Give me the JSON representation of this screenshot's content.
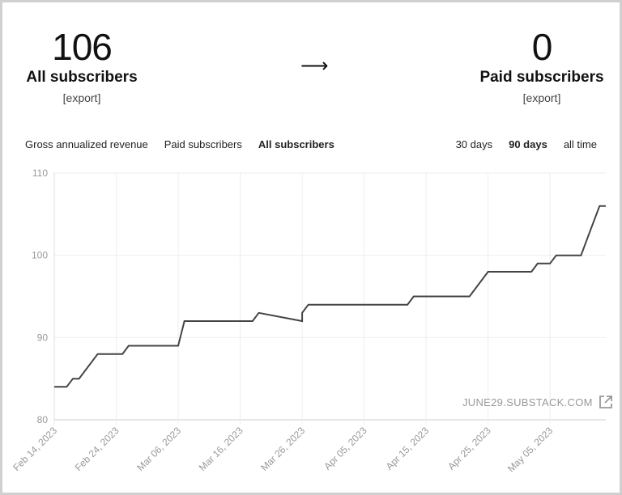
{
  "stats": {
    "all": {
      "value": "106",
      "label": "All subscribers",
      "export": "[export]"
    },
    "paid": {
      "value": "0",
      "label": "Paid subscribers",
      "export": "[export]"
    },
    "arrow": "⟶"
  },
  "metric_tabs": [
    {
      "label": "Gross annualized revenue",
      "active": false
    },
    {
      "label": "Paid subscribers",
      "active": false
    },
    {
      "label": "All subscribers",
      "active": true
    }
  ],
  "range_tabs": [
    {
      "label": "30 days",
      "active": false
    },
    {
      "label": "90 days",
      "active": true
    },
    {
      "label": "all time",
      "active": false
    }
  ],
  "watermark": {
    "text": "JUNE29.SUBSTACK.COM",
    "icon": "external-link-icon"
  },
  "chart_data": {
    "type": "line",
    "ylim": [
      80,
      110
    ],
    "yticks": [
      80,
      90,
      100,
      110
    ],
    "xlim": [
      "2023-02-14",
      "2023-05-14"
    ],
    "xticks": [
      {
        "date": "2023-02-14",
        "label": "Feb 14, 2023"
      },
      {
        "date": "2023-02-24",
        "label": "Feb 24, 2023"
      },
      {
        "date": "2023-03-06",
        "label": "Mar 06, 2023"
      },
      {
        "date": "2023-03-16",
        "label": "Mar 16, 2023"
      },
      {
        "date": "2023-03-26",
        "label": "Mar 26, 2023"
      },
      {
        "date": "2023-04-05",
        "label": "Apr 05, 2023"
      },
      {
        "date": "2023-04-15",
        "label": "Apr 15, 2023"
      },
      {
        "date": "2023-04-25",
        "label": "Apr 25, 2023"
      },
      {
        "date": "2023-05-05",
        "label": "May 05, 2023"
      }
    ],
    "grid": true,
    "line_color": "#444444",
    "series": [
      {
        "points": [
          [
            "2023-02-14",
            84
          ],
          [
            "2023-02-16",
            84
          ],
          [
            "2023-02-17",
            85
          ],
          [
            "2023-02-18",
            85
          ],
          [
            "2023-02-21",
            88
          ],
          [
            "2023-02-25",
            88
          ],
          [
            "2023-02-26",
            89
          ],
          [
            "2023-03-06",
            89
          ],
          [
            "2023-03-06",
            89
          ],
          [
            "2023-03-07",
            92
          ],
          [
            "2023-03-26",
            92
          ],
          [
            "2023-03-26",
            92
          ],
          [
            "2023-03-18",
            92
          ],
          [
            "2023-03-18",
            92
          ],
          [
            "2023-03-19",
            93
          ],
          [
            "2023-03-26",
            93
          ],
          [
            "2023-03-27",
            94
          ],
          [
            "2023-04-12",
            94
          ],
          [
            "2023-04-13",
            95
          ],
          [
            "2023-04-22",
            95
          ],
          [
            "2023-04-25",
            98
          ],
          [
            "2023-05-02",
            98
          ],
          [
            "2023-05-03",
            99
          ],
          [
            "2023-05-05",
            99
          ],
          [
            "2023-05-06",
            100
          ],
          [
            "2023-05-10",
            100
          ],
          [
            "2023-05-11",
            102
          ],
          [
            "2023-05-13",
            106
          ],
          [
            "2023-05-14",
            106
          ]
        ]
      }
    ]
  }
}
